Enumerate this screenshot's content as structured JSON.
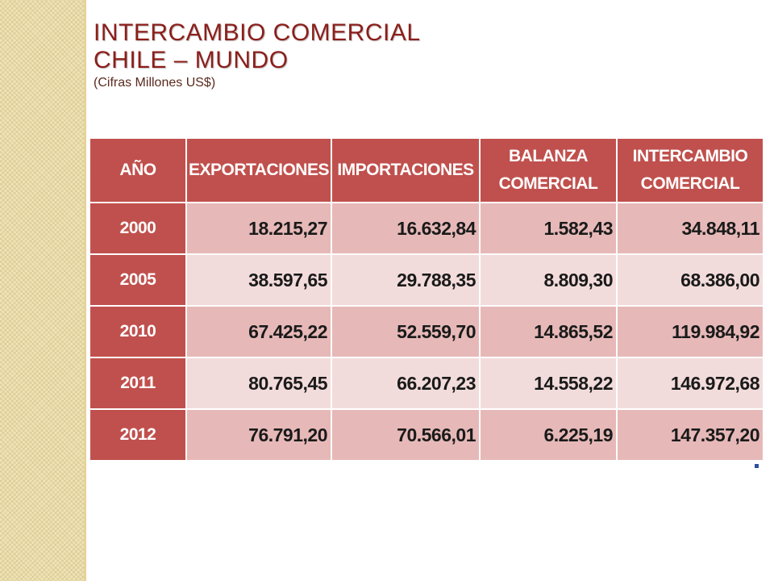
{
  "title": {
    "line1": "INTERCAMBIO COMERCIAL",
    "line2": "CHILE – MUNDO",
    "subtitle": "(Cifras Millones US$)"
  },
  "table": {
    "headers": [
      "AÑO",
      "EXPORTACIONES",
      "IMPORTACIONES",
      "BALANZA COMERCIAL",
      "INTERCAMBIO COMERCIAL"
    ],
    "rows": [
      [
        "2000",
        "18.215,27",
        "16.632,84",
        "1.582,43",
        "34.848,11"
      ],
      [
        "2005",
        "38.597,65",
        "29.788,35",
        "8.809,30",
        "68.386,00"
      ],
      [
        "2010",
        "67.425,22",
        "52.559,70",
        "14.865,52",
        "119.984,92"
      ],
      [
        "2011",
        "80.765,45",
        "66.207,23",
        "14.558,22",
        "146.972,68"
      ],
      [
        "2012",
        "76.791,20",
        "70.566,01",
        "6.225,19",
        "147.357,20"
      ]
    ]
  },
  "colors": {
    "header": "#c0504d",
    "row_dark": "#e6b9b8",
    "row_light": "#f2dcdb",
    "title": "#8b1e1a"
  }
}
